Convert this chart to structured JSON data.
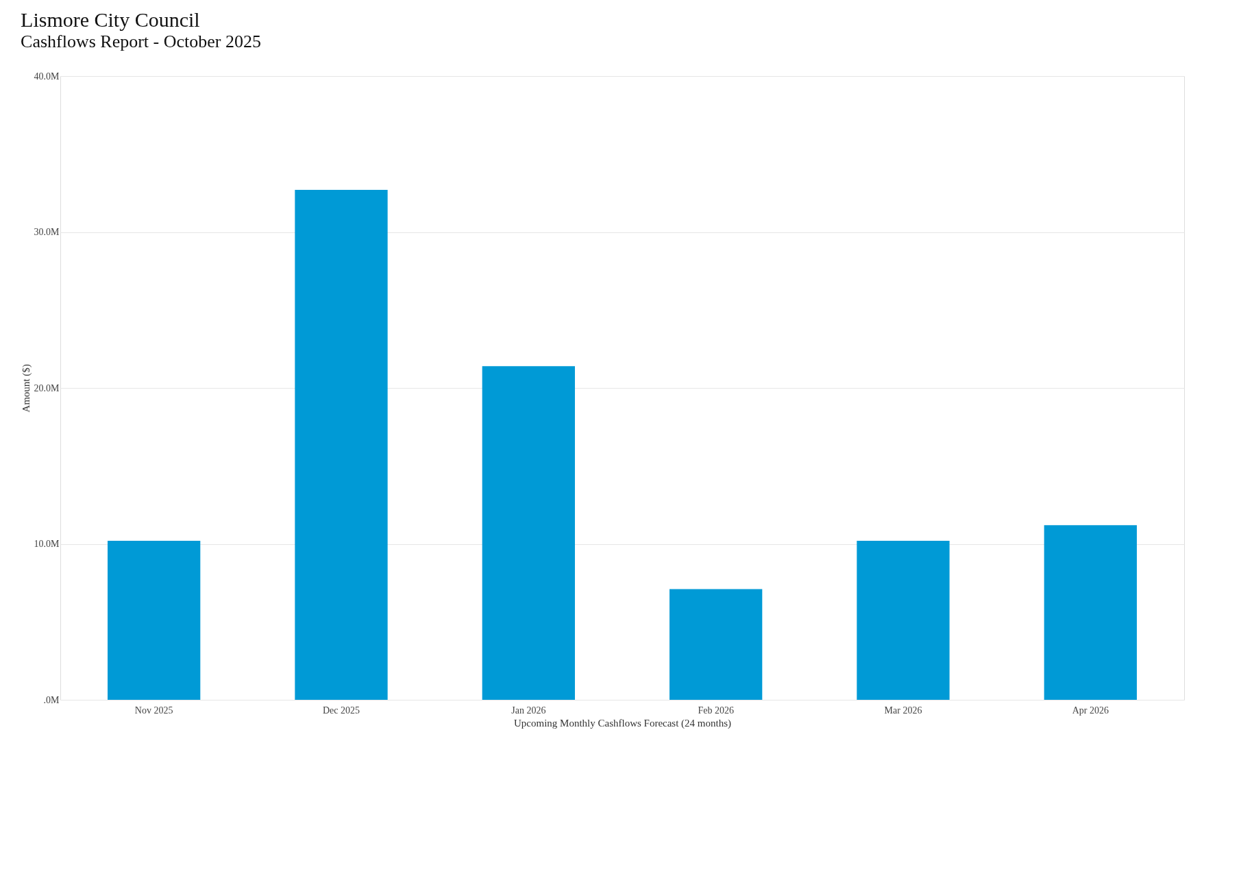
{
  "chart_data": {
    "type": "bar",
    "title": "Lismore City Council",
    "subtitle": "Cashflows Report - October 2025",
    "xlabel": "Upcoming Monthly Cashflows Forecast (24 months)",
    "ylabel": "Amount ($)",
    "categories": [
      "Nov 2025",
      "Dec 2025",
      "Jan 2026",
      "Feb 2026",
      "Mar 2026",
      "Apr 2026"
    ],
    "values": [
      10.2,
      32.7,
      21.4,
      7.1,
      10.2,
      11.2
    ],
    "color": "#009ad6",
    "ylim": [
      0,
      40
    ],
    "yticks": [
      {
        "value": 0,
        "label": ".0M"
      },
      {
        "value": 10,
        "label": "10.0M"
      },
      {
        "value": 20,
        "label": "20.0M"
      },
      {
        "value": 30,
        "label": "30.0M"
      },
      {
        "value": 40,
        "label": "40.0M"
      }
    ],
    "grid": "y"
  }
}
